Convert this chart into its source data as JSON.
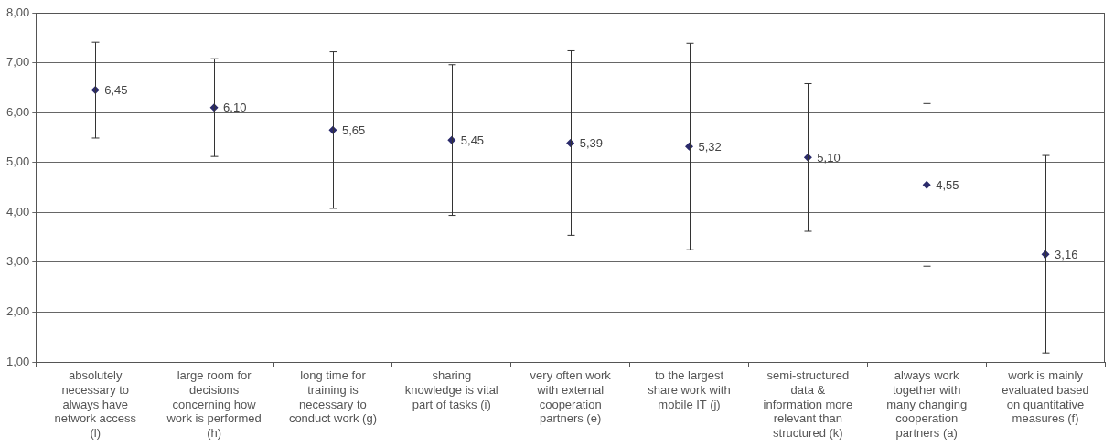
{
  "chart_data": {
    "type": "scatter",
    "categories": [
      "absolutely necessary to always have network access (l)",
      "large room for decisions concerning how work is performed (h)",
      "long time for training is necessary to conduct work (g)",
      "sharing knowledge is vital part of tasks (i)",
      "very often work with external cooperation partners (e)",
      "to the largest share work with mobile IT (j)",
      "semi-structured data & information more relevant than structured (k)",
      "always work together with many changing cooperation partners (a)",
      "work is mainly evaluated based on quantitative measures (f)"
    ],
    "values": [
      6.45,
      6.1,
      5.65,
      5.45,
      5.39,
      5.32,
      5.1,
      4.55,
      3.16
    ],
    "errors": [
      0.96,
      0.98,
      1.57,
      1.51,
      1.85,
      2.07,
      1.48,
      1.63,
      1.98
    ],
    "value_labels": [
      "6,45",
      "6,10",
      "5,65",
      "5,45",
      "5,39",
      "5,32",
      "5,10",
      "4,55",
      "3,16"
    ],
    "color": "#2b2b6b",
    "marker": "diamond",
    "grid": "y",
    "legend": false,
    "ylim": [
      1,
      8
    ],
    "yticks": [
      {
        "value": 1,
        "label": "1,00"
      },
      {
        "value": 2,
        "label": "2,00"
      },
      {
        "value": 3,
        "label": "3,00"
      },
      {
        "value": 4,
        "label": "4,00"
      },
      {
        "value": 5,
        "label": "5,00"
      },
      {
        "value": 6,
        "label": "6,00"
      },
      {
        "value": 7,
        "label": "7,00"
      },
      {
        "value": 8,
        "label": "8,00"
      }
    ]
  }
}
